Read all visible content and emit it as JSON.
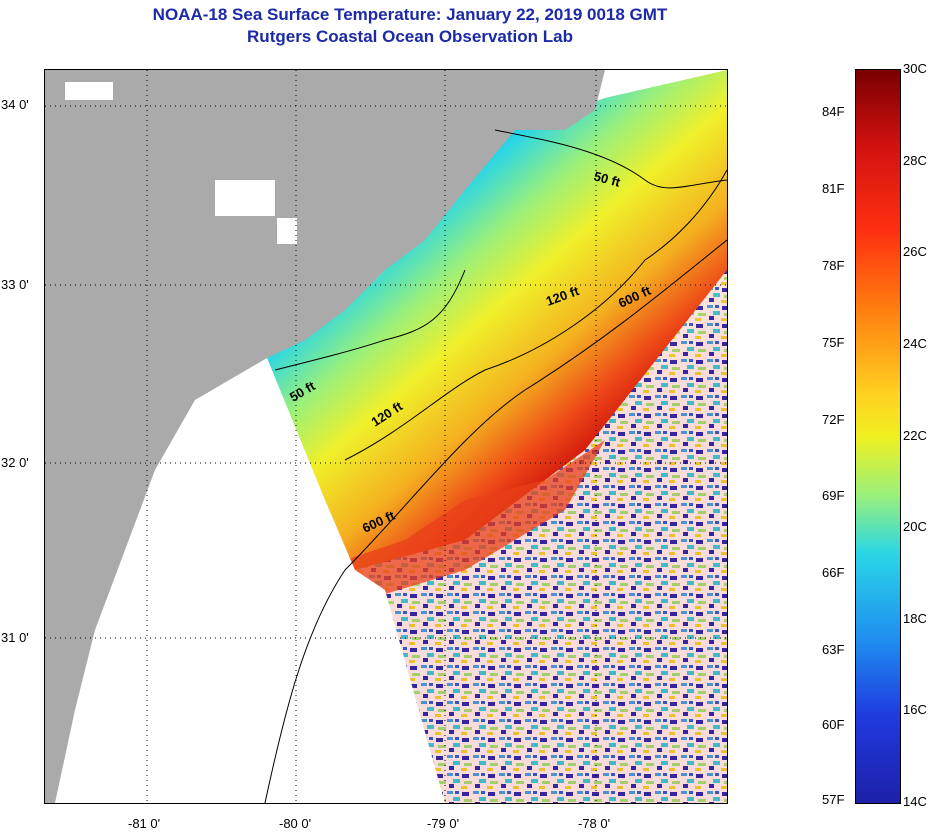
{
  "title_line1": "NOAA-18 Sea Surface Temperature:  January 22, 2019 0018 GMT",
  "title_line2": "Rutgers Coastal Ocean Observation Lab",
  "lat_labels": [
    "34 0'",
    "33 0'",
    "32 0'",
    "31 0'"
  ],
  "lon_labels": [
    "-81 0'",
    "-80 0'",
    "-79 0'",
    "-78 0'"
  ],
  "contours": {
    "c50a": "50 ft",
    "c50b": "50 ft",
    "c120a": "120 ft",
    "c120b": "120 ft",
    "c600a": "600 ft",
    "c600b": "600 ft"
  },
  "colorbar": {
    "celsius": [
      "30C",
      "28C",
      "26C",
      "24C",
      "22C",
      "20C",
      "18C",
      "16C",
      "14C"
    ],
    "fahrenheit": [
      "84F",
      "81F",
      "78F",
      "75F",
      "72F",
      "69F",
      "66F",
      "63F",
      "60F",
      "57F"
    ],
    "min_c": 14,
    "max_c": 30
  },
  "colors": {
    "title": "#1c2aa8",
    "land": "#aaaaaa",
    "no_data": "#ffffff"
  }
}
